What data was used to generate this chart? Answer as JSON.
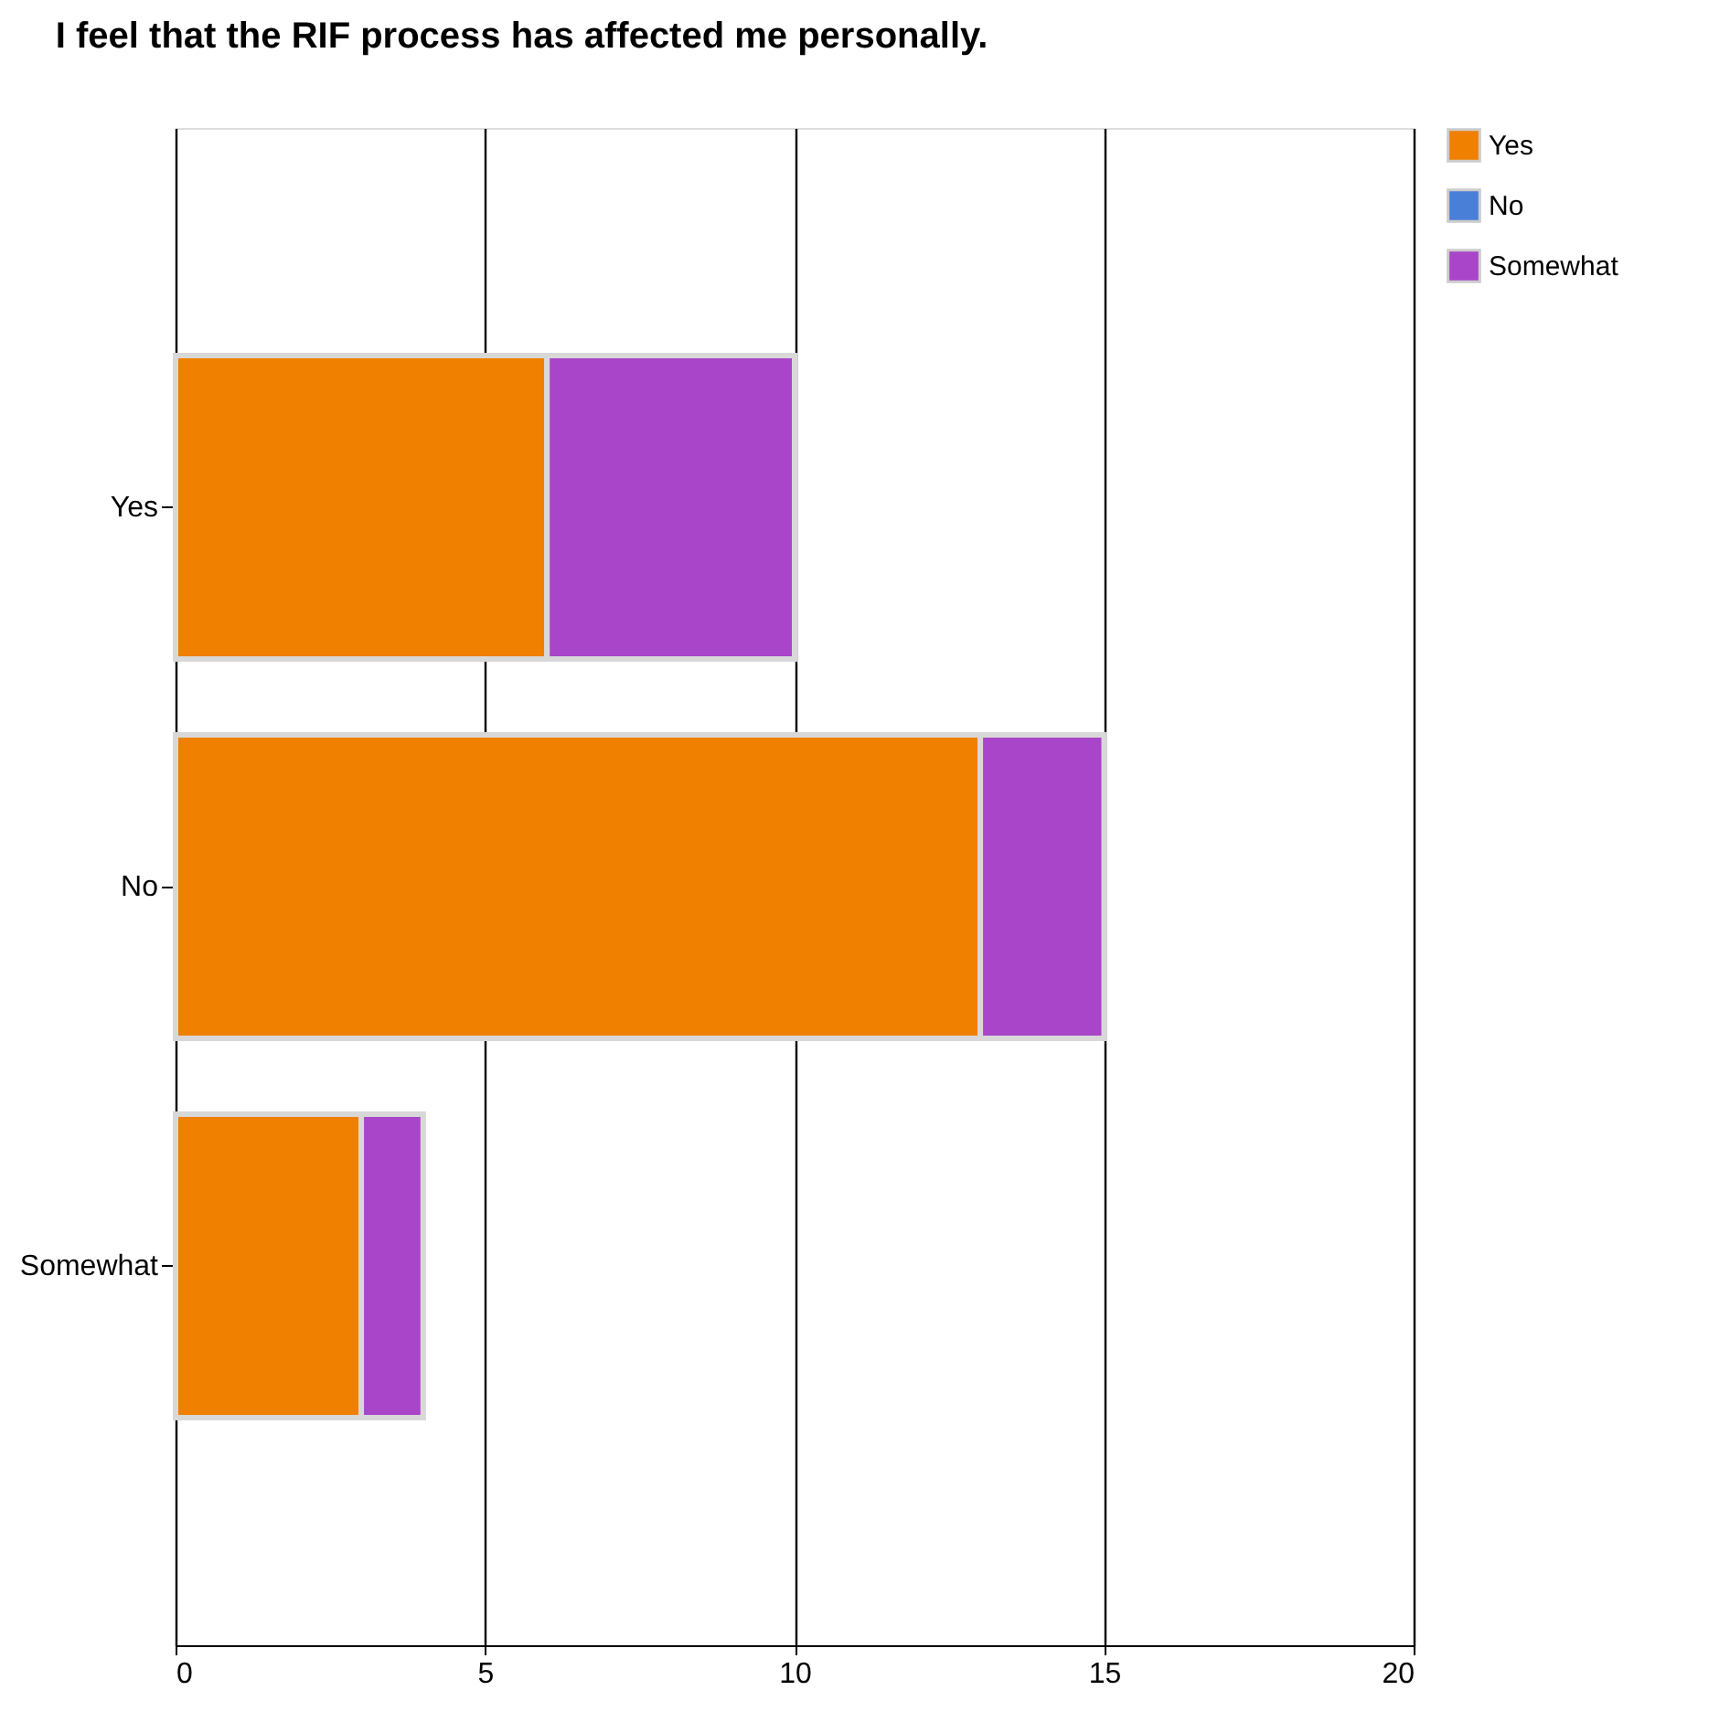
{
  "chart_data": {
    "type": "bar",
    "title": "I feel that the RIF process has affected me personally.",
    "orientation": "horizontal",
    "stacked": true,
    "categories": [
      "Yes",
      "No",
      "Somewhat"
    ],
    "series": [
      {
        "name": "Yes",
        "color": "#f08000",
        "values": [
          6,
          13,
          3
        ]
      },
      {
        "name": "No",
        "color": "#4a7fd8",
        "values": [
          0,
          0,
          0
        ]
      },
      {
        "name": "Somewhat",
        "color": "#a845c8",
        "values": [
          4,
          2,
          1
        ]
      }
    ],
    "xlim": [
      0,
      20
    ],
    "xticks": [
      0,
      5,
      10,
      15,
      20
    ],
    "grid": "x",
    "legend": "right"
  }
}
